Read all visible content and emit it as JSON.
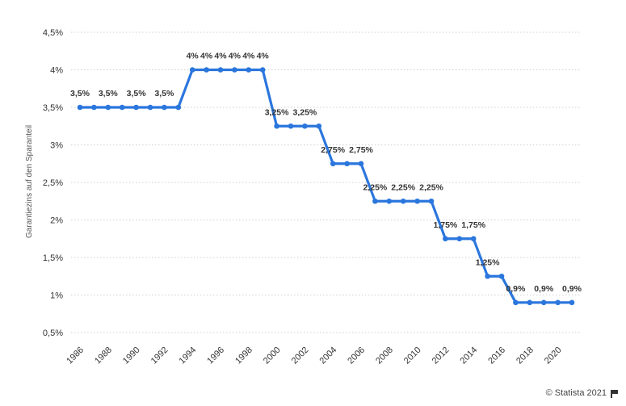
{
  "chart_data": {
    "type": "line",
    "title": "",
    "xlabel": "",
    "ylabel": "Garantiezins auf den Sparanteil",
    "x": [
      1986,
      1987,
      1988,
      1989,
      1990,
      1991,
      1992,
      1993,
      1994,
      1995,
      1996,
      1997,
      1998,
      1999,
      2000,
      2001,
      2002,
      2003,
      2004,
      2005,
      2006,
      2007,
      2008,
      2009,
      2010,
      2011,
      2012,
      2013,
      2014,
      2015,
      2016,
      2017,
      2018,
      2019,
      2020,
      2021
    ],
    "series": [
      {
        "values": [
          3.5,
          3.5,
          3.5,
          3.5,
          3.5,
          3.5,
          3.5,
          3.5,
          4,
          4,
          4,
          4,
          4,
          4,
          3.25,
          3.25,
          3.25,
          3.25,
          2.75,
          2.75,
          2.75,
          2.25,
          2.25,
          2.25,
          2.25,
          2.25,
          1.75,
          1.75,
          1.75,
          1.25,
          1.25,
          0.9,
          0.9,
          0.9,
          0.9,
          0.9
        ],
        "color": "#2a76dd"
      }
    ],
    "data_labels": [
      {
        "year": 1986,
        "text": "3,5%"
      },
      {
        "year": 1988,
        "text": "3,5%"
      },
      {
        "year": 1990,
        "text": "3,5%"
      },
      {
        "year": 1992,
        "text": "3,5%"
      },
      {
        "year": 1994,
        "text": "4%"
      },
      {
        "year": 1995,
        "text": "4%"
      },
      {
        "year": 1996,
        "text": "4%"
      },
      {
        "year": 1997,
        "text": "4%"
      },
      {
        "year": 1998,
        "text": "4%"
      },
      {
        "year": 1999,
        "text": "4%"
      },
      {
        "year": 2000,
        "text": "3,25%"
      },
      {
        "year": 2002,
        "text": "3,25%"
      },
      {
        "year": 2004,
        "text": "2,75%"
      },
      {
        "year": 2006,
        "text": "2,75%"
      },
      {
        "year": 2007,
        "text": "2,25%"
      },
      {
        "year": 2009,
        "text": "2,25%"
      },
      {
        "year": 2011,
        "text": "2,25%"
      },
      {
        "year": 2012,
        "text": "1,75%"
      },
      {
        "year": 2014,
        "text": "1,75%"
      },
      {
        "year": 2015,
        "text": "1,25%"
      },
      {
        "year": 2017,
        "text": "0,9%"
      },
      {
        "year": 2019,
        "text": "0,9%"
      },
      {
        "year": 2021,
        "text": "0,9%"
      }
    ],
    "yticks": [
      {
        "value": 0.5,
        "label": "0,5%"
      },
      {
        "value": 1.0,
        "label": "1%"
      },
      {
        "value": 1.5,
        "label": "1,5%"
      },
      {
        "value": 2.0,
        "label": "2%"
      },
      {
        "value": 2.5,
        "label": "2,5%"
      },
      {
        "value": 3.0,
        "label": "3%"
      },
      {
        "value": 3.5,
        "label": "3,5%"
      },
      {
        "value": 4.0,
        "label": "4%"
      },
      {
        "value": 4.5,
        "label": "4,5%"
      }
    ],
    "xticks": [
      "1986",
      "1988",
      "1990",
      "1992",
      "1994",
      "1996",
      "1998",
      "2000",
      "2002",
      "2004",
      "2006",
      "2008",
      "2010",
      "2012",
      "2014",
      "2016",
      "2018",
      "2020"
    ],
    "ylim": [
      0.5,
      4.5
    ],
    "xlim": [
      1986,
      2021
    ],
    "grid": true,
    "legend": "none"
  },
  "footer": {
    "credit": "© Statista 2021"
  }
}
